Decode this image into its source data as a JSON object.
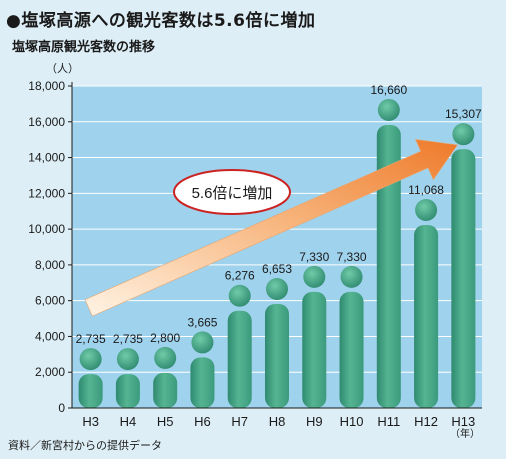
{
  "title": "●塩塚高源への観光客数は5.6倍に増加",
  "subtitle": "塩塚高原観光客数の推移",
  "source": "資料／新宮村からの提供データ",
  "callout": "5.6倍に増加",
  "colors": {
    "background": "#ddeef6",
    "plot_background": "#9fd2ec",
    "bar_green": "#3f9d82",
    "bar_green_light": "#5fbf9b",
    "arrow": "#f08a3c",
    "callout_ring": "#cc2222"
  },
  "chart_data": {
    "type": "bar",
    "y_unit": "（人）",
    "x_unit": "（年）",
    "categories": [
      "H3",
      "H4",
      "H5",
      "H6",
      "H7",
      "H8",
      "H9",
      "H10",
      "H11",
      "H12",
      "H13"
    ],
    "values": [
      2735,
      2735,
      2800,
      3665,
      6276,
      6653,
      7330,
      7330,
      16660,
      11068,
      15307
    ],
    "value_labels": [
      "2,735",
      "2,735",
      "2,800",
      "3,665",
      "6,276",
      "6,653",
      "7,330",
      "7,330",
      "16,660",
      "11,068",
      "15,307"
    ],
    "yticks": [
      0,
      2000,
      4000,
      6000,
      8000,
      10000,
      12000,
      14000,
      16000,
      18000
    ],
    "ytick_labels": [
      "0",
      "2,000",
      "4,000",
      "6,000",
      "8,000",
      "10,000",
      "12,000",
      "14,000",
      "16,000",
      "18,000"
    ],
    "ylim": [
      0,
      18000
    ],
    "grid": true,
    "annotation": "5.6倍に増加"
  }
}
